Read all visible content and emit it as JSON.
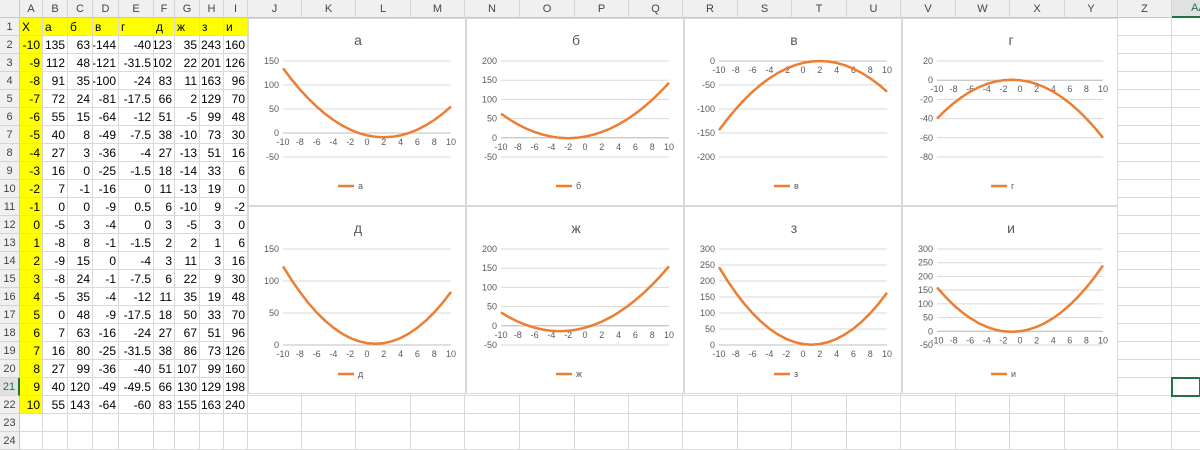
{
  "columns": [
    "A",
    "B",
    "C",
    "D",
    "E",
    "F",
    "G",
    "H",
    "I",
    "J",
    "K",
    "L",
    "M",
    "N",
    "O",
    "P",
    "Q",
    "R",
    "S",
    "T",
    "U",
    "V",
    "W",
    "X",
    "Y",
    "Z",
    "AA"
  ],
  "rows": [
    "1",
    "2",
    "3",
    "4",
    "5",
    "6",
    "7",
    "8",
    "9",
    "10",
    "11",
    "12",
    "13",
    "14",
    "15",
    "16",
    "17",
    "18",
    "19",
    "20",
    "21",
    "22",
    "23",
    "24"
  ],
  "selected_col": "AA",
  "selected_row": "21",
  "table": {
    "headers": [
      "X",
      "а",
      "б",
      "в",
      "г",
      "д",
      "ж",
      "з",
      "и"
    ],
    "rows": [
      [
        "-10",
        "135",
        "63",
        "-144",
        "-40",
        "123",
        "35",
        "243",
        "160"
      ],
      [
        "-9",
        "112",
        "48",
        "-121",
        "-31.5",
        "102",
        "22",
        "201",
        "126"
      ],
      [
        "-8",
        "91",
        "35",
        "-100",
        "-24",
        "83",
        "11",
        "163",
        "96"
      ],
      [
        "-7",
        "72",
        "24",
        "-81",
        "-17.5",
        "66",
        "2",
        "129",
        "70"
      ],
      [
        "-6",
        "55",
        "15",
        "-64",
        "-12",
        "51",
        "-5",
        "99",
        "48"
      ],
      [
        "-5",
        "40",
        "8",
        "-49",
        "-7.5",
        "38",
        "-10",
        "73",
        "30"
      ],
      [
        "-4",
        "27",
        "3",
        "-36",
        "-4",
        "27",
        "-13",
        "51",
        "16"
      ],
      [
        "-3",
        "16",
        "0",
        "-25",
        "-1.5",
        "18",
        "-14",
        "33",
        "6"
      ],
      [
        "-2",
        "7",
        "-1",
        "-16",
        "0",
        "11",
        "-13",
        "19",
        "0"
      ],
      [
        "-1",
        "0",
        "0",
        "-9",
        "0.5",
        "6",
        "-10",
        "9",
        "-2"
      ],
      [
        "0",
        "-5",
        "3",
        "-4",
        "0",
        "3",
        "-5",
        "3",
        "0"
      ],
      [
        "1",
        "-8",
        "8",
        "-1",
        "-1.5",
        "2",
        "2",
        "1",
        "6"
      ],
      [
        "2",
        "-9",
        "15",
        "0",
        "-4",
        "3",
        "11",
        "3",
        "16"
      ],
      [
        "3",
        "-8",
        "24",
        "-1",
        "-7.5",
        "6",
        "22",
        "9",
        "30"
      ],
      [
        "4",
        "-5",
        "35",
        "-4",
        "-12",
        "11",
        "35",
        "19",
        "48"
      ],
      [
        "5",
        "0",
        "48",
        "-9",
        "-17.5",
        "18",
        "50",
        "33",
        "70"
      ],
      [
        "6",
        "7",
        "63",
        "-16",
        "-24",
        "27",
        "67",
        "51",
        "96"
      ],
      [
        "7",
        "16",
        "80",
        "-25",
        "-31.5",
        "38",
        "86",
        "73",
        "126"
      ],
      [
        "8",
        "27",
        "99",
        "-36",
        "-40",
        "51",
        "107",
        "99",
        "160"
      ],
      [
        "9",
        "40",
        "120",
        "-49",
        "-49.5",
        "66",
        "130",
        "129",
        "198"
      ],
      [
        "10",
        "55",
        "143",
        "-64",
        "-60",
        "83",
        "155",
        "163",
        "240"
      ]
    ]
  },
  "chart_data": [
    {
      "type": "line",
      "title": "а",
      "x": [
        -10,
        -9,
        -8,
        -7,
        -6,
        -5,
        -4,
        -3,
        -2,
        -1,
        0,
        1,
        2,
        3,
        4,
        5,
        6,
        7,
        8,
        9,
        10
      ],
      "series": [
        {
          "name": "а",
          "values": [
            135,
            112,
            91,
            72,
            55,
            40,
            27,
            16,
            7,
            0,
            -5,
            -8,
            -9,
            -8,
            -5,
            0,
            7,
            16,
            27,
            40,
            55
          ]
        }
      ],
      "yticks": [
        150,
        100,
        50,
        0,
        -50
      ],
      "ylim": [
        -50,
        150
      ],
      "xticks": [
        "-10",
        "-8",
        "-6",
        "-4",
        "-2",
        "0",
        "2",
        "4",
        "6",
        "8",
        "10"
      ],
      "color": "#ED7D31",
      "legend": "bottom"
    },
    {
      "type": "line",
      "title": "б",
      "x": [
        -10,
        -9,
        -8,
        -7,
        -6,
        -5,
        -4,
        -3,
        -2,
        -1,
        0,
        1,
        2,
        3,
        4,
        5,
        6,
        7,
        8,
        9,
        10
      ],
      "series": [
        {
          "name": "б",
          "values": [
            63,
            48,
            35,
            24,
            15,
            8,
            3,
            0,
            -1,
            0,
            3,
            8,
            15,
            24,
            35,
            48,
            63,
            80,
            99,
            120,
            143
          ]
        }
      ],
      "yticks": [
        200,
        150,
        100,
        50,
        0,
        -50
      ],
      "ylim": [
        -50,
        200
      ],
      "xticks": [
        "-10",
        "-8",
        "-6",
        "-4",
        "-2",
        "0",
        "2",
        "4",
        "6",
        "8",
        "10"
      ],
      "color": "#ED7D31",
      "legend": "bottom"
    },
    {
      "type": "line",
      "title": "в",
      "x": [
        -10,
        -9,
        -8,
        -7,
        -6,
        -5,
        -4,
        -3,
        -2,
        -1,
        0,
        1,
        2,
        3,
        4,
        5,
        6,
        7,
        8,
        9,
        10
      ],
      "series": [
        {
          "name": "в",
          "values": [
            -144,
            -121,
            -100,
            -81,
            -64,
            -49,
            -36,
            -25,
            -16,
            -9,
            -4,
            -1,
            0,
            -1,
            -4,
            -9,
            -16,
            -25,
            -36,
            -49,
            -64
          ]
        }
      ],
      "yticks": [
        0,
        -50,
        -100,
        -150,
        -200
      ],
      "ylim": [
        -200,
        0
      ],
      "xticks": [
        "-10",
        "-8",
        "-6",
        "-4",
        "-2",
        "0",
        "2",
        "4",
        "6",
        "8",
        "10"
      ],
      "color": "#ED7D31",
      "legend": "bottom"
    },
    {
      "type": "line",
      "title": "г",
      "x": [
        -10,
        -9,
        -8,
        -7,
        -6,
        -5,
        -4,
        -3,
        -2,
        -1,
        0,
        1,
        2,
        3,
        4,
        5,
        6,
        7,
        8,
        9,
        10
      ],
      "series": [
        {
          "name": "г",
          "values": [
            -40,
            -31.5,
            -24,
            -17.5,
            -12,
            -7.5,
            -4,
            -1.5,
            0,
            0.5,
            0,
            -1.5,
            -4,
            -7.5,
            -12,
            -17.5,
            -24,
            -31.5,
            -40,
            -49.5,
            -60
          ]
        }
      ],
      "yticks": [
        20,
        0,
        -20,
        -40,
        -60,
        -80
      ],
      "ylim": [
        -80,
        20
      ],
      "xticks": [
        "-10",
        "-8",
        "-6",
        "-4",
        "-2",
        "0",
        "2",
        "4",
        "6",
        "8",
        "10"
      ],
      "color": "#ED7D31",
      "legend": "bottom"
    },
    {
      "type": "line",
      "title": "д",
      "x": [
        -10,
        -9,
        -8,
        -7,
        -6,
        -5,
        -4,
        -3,
        -2,
        -1,
        0,
        1,
        2,
        3,
        4,
        5,
        6,
        7,
        8,
        9,
        10
      ],
      "series": [
        {
          "name": "д",
          "values": [
            123,
            102,
            83,
            66,
            51,
            38,
            27,
            18,
            11,
            6,
            3,
            2,
            3,
            6,
            11,
            18,
            27,
            38,
            51,
            66,
            83
          ]
        }
      ],
      "yticks": [
        150,
        100,
        50,
        0
      ],
      "ylim": [
        0,
        150
      ],
      "xticks": [
        "-10",
        "-8",
        "-6",
        "-4",
        "-2",
        "0",
        "2",
        "4",
        "6",
        "8",
        "10"
      ],
      "color": "#ED7D31",
      "legend": "bottom"
    },
    {
      "type": "line",
      "title": "ж",
      "x": [
        -10,
        -9,
        -8,
        -7,
        -6,
        -5,
        -4,
        -3,
        -2,
        -1,
        0,
        1,
        2,
        3,
        4,
        5,
        6,
        7,
        8,
        9,
        10
      ],
      "series": [
        {
          "name": "ж",
          "values": [
            35,
            22,
            11,
            2,
            -5,
            -10,
            -13,
            -14,
            -13,
            -10,
            -5,
            2,
            11,
            22,
            35,
            50,
            67,
            86,
            107,
            130,
            155
          ]
        }
      ],
      "yticks": [
        200,
        150,
        100,
        50,
        0,
        -50
      ],
      "ylim": [
        -50,
        200
      ],
      "xticks": [
        "-10",
        "-8",
        "-6",
        "-4",
        "-2",
        "0",
        "2",
        "4",
        "6",
        "8",
        "10"
      ],
      "color": "#ED7D31",
      "legend": "bottom"
    },
    {
      "type": "line",
      "title": "з",
      "x": [
        -10,
        -9,
        -8,
        -7,
        -6,
        -5,
        -4,
        -3,
        -2,
        -1,
        0,
        1,
        2,
        3,
        4,
        5,
        6,
        7,
        8,
        9,
        10
      ],
      "series": [
        {
          "name": "з",
          "values": [
            243,
            201,
            163,
            129,
            99,
            73,
            51,
            33,
            19,
            9,
            3,
            1,
            3,
            9,
            19,
            33,
            51,
            73,
            99,
            129,
            163
          ]
        }
      ],
      "yticks": [
        300,
        250,
        200,
        150,
        100,
        50,
        0
      ],
      "ylim": [
        0,
        300
      ],
      "xticks": [
        "-10",
        "-8",
        "-6",
        "-4",
        "-2",
        "0",
        "2",
        "4",
        "6",
        "8",
        "10"
      ],
      "color": "#ED7D31",
      "legend": "bottom"
    },
    {
      "type": "line",
      "title": "и",
      "x": [
        -10,
        -9,
        -8,
        -7,
        -6,
        -5,
        -4,
        -3,
        -2,
        -1,
        0,
        1,
        2,
        3,
        4,
        5,
        6,
        7,
        8,
        9,
        10
      ],
      "series": [
        {
          "name": "и",
          "values": [
            160,
            126,
            96,
            70,
            48,
            30,
            16,
            6,
            0,
            -2,
            0,
            6,
            16,
            30,
            48,
            70,
            96,
            126,
            160,
            198,
            240
          ]
        }
      ],
      "yticks": [
        300,
        250,
        200,
        150,
        100,
        50,
        0,
        -50
      ],
      "ylim": [
        -50,
        300
      ],
      "xticks": [
        "-10",
        "-8",
        "-6",
        "-4",
        "-2",
        "0",
        "2",
        "4",
        "6",
        "8",
        "10"
      ],
      "color": "#ED7D31",
      "legend": "bottom"
    }
  ]
}
